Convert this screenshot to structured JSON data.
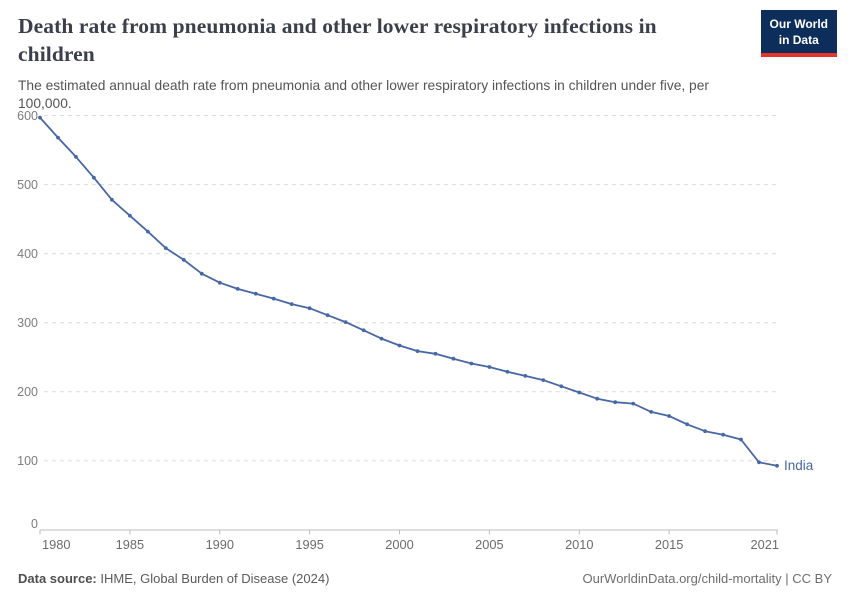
{
  "header": {
    "title": "Death rate from pneumonia and other lower respiratory infections in children",
    "subtitle": "The estimated annual death rate from pneumonia and other lower respiratory infections in children under five, per 100,000."
  },
  "logo": {
    "line1": "Our World",
    "line2": "in Data",
    "bg_color": "#0d2e5a",
    "bar_color": "#e5332d"
  },
  "chart_data": {
    "type": "line",
    "title": "Death rate from pneumonia and other lower respiratory infections in children",
    "xlabel": "",
    "ylabel": "",
    "x": [
      1980,
      1981,
      1982,
      1983,
      1984,
      1985,
      1986,
      1987,
      1988,
      1989,
      1990,
      1991,
      1992,
      1993,
      1994,
      1995,
      1996,
      1997,
      1998,
      1999,
      2000,
      2001,
      2002,
      2003,
      2004,
      2005,
      2006,
      2007,
      2008,
      2009,
      2010,
      2011,
      2012,
      2013,
      2014,
      2015,
      2016,
      2017,
      2018,
      2019,
      2020,
      2021
    ],
    "series": [
      {
        "name": "India",
        "color": "#4767a5",
        "values": [
          597,
          568,
          540,
          510,
          478,
          455,
          432,
          408,
          391,
          371,
          358,
          349,
          342,
          335,
          327,
          321,
          311,
          301,
          289,
          277,
          267,
          259,
          255,
          248,
          241,
          236,
          229,
          223,
          217,
          208,
          199,
          190,
          185,
          183,
          171,
          165,
          153,
          143,
          138,
          131,
          98,
          93
        ]
      }
    ],
    "ylim": [
      0,
      600
    ],
    "y_ticks": [
      0,
      100,
      200,
      300,
      400,
      500,
      600
    ],
    "x_ticks": [
      1980,
      1985,
      1990,
      1995,
      2000,
      2005,
      2010,
      2015,
      2021
    ],
    "grid": true,
    "legend_position": "end-of-line-label",
    "colors": {
      "grid": "#dcdcdc",
      "axis": "#bdbdbd",
      "y_tick_label": "#7d7d7d",
      "x_tick_label": "#6c6c6c"
    },
    "layout": {
      "x0": 40,
      "x1": 777,
      "y_top": 115.5,
      "y_axis": 530,
      "grid_x0": 44,
      "grid_x1": 778,
      "y_label_x": 38
    }
  },
  "footer": {
    "source_label": "Data source:",
    "source_text": " IHME, Global Burden of Disease (2024)",
    "credit": "OurWorldinData.org/child-mortality | CC BY"
  }
}
